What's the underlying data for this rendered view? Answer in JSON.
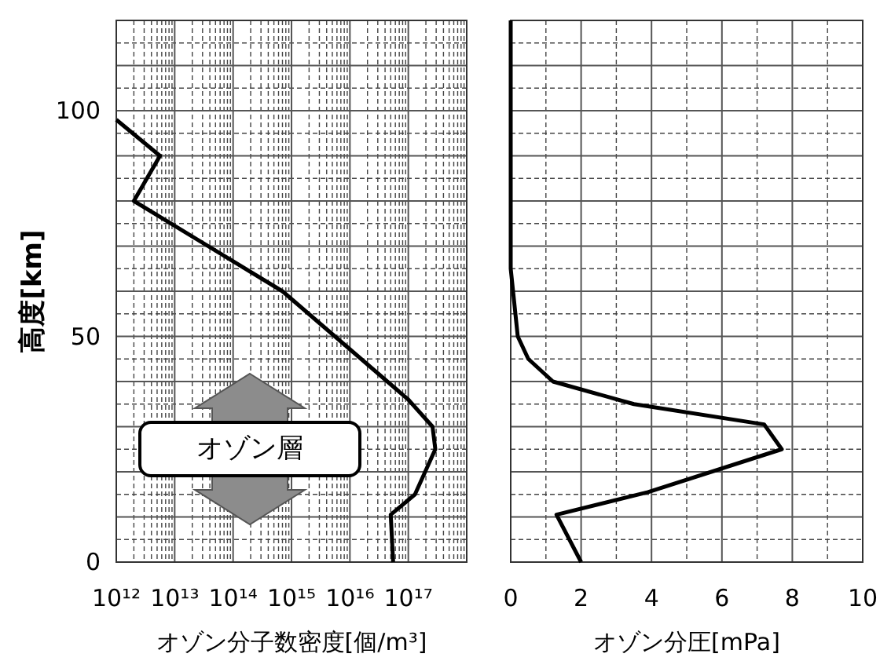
{
  "chart_data": [
    {
      "type": "line",
      "ylabel": "高度[km]",
      "xlabel": "オゾン分子数密度[個/m³]",
      "log": "x",
      "grid": true,
      "xlim": [
        1000000000000.0,
        1e+18
      ],
      "xticks": [
        {
          "value": 1000000000000.0,
          "label": "10¹²"
        },
        {
          "value": 10000000000000.0,
          "label": "10¹³"
        },
        {
          "value": 100000000000000.0,
          "label": "10¹⁴"
        },
        {
          "value": 1000000000000000.0,
          "label": "10¹⁵"
        },
        {
          "value": 1e+16,
          "label": "10¹⁶"
        },
        {
          "value": 1e+17,
          "label": "10¹⁷"
        },
        {
          "value": 1e+18,
          "label": null
        }
      ],
      "ylim": [
        0,
        120
      ],
      "yticks": [
        0,
        {
          "value": 10,
          "label": null
        },
        {
          "value": 20,
          "label": null
        },
        {
          "value": 30,
          "label": null
        },
        {
          "value": 40,
          "label": null
        },
        50,
        {
          "value": 60,
          "label": null
        },
        {
          "value": 70,
          "label": null
        },
        {
          "value": 80,
          "label": null
        },
        {
          "value": 90,
          "label": null
        },
        100,
        {
          "value": 110,
          "label": null
        },
        {
          "value": 120,
          "label": null
        }
      ],
      "line_style": "solid",
      "annotations": [
        "オゾン層"
      ],
      "series": [
        {
          "color": "#000000",
          "x": [
            1000000000000.0,
            5600000000000.0,
            2000000000000.0,
            700000000000000.0,
            1e+17,
            2.6e+17,
            2.9e+17,
            1.3e+17,
            5e+16,
            5.5e+16
          ],
          "values": [
            98,
            90,
            80,
            60,
            36,
            30,
            25,
            15,
            10.5,
            0
          ]
        }
      ]
    },
    {
      "type": "line",
      "xlabel": "オゾン分圧[mPa]",
      "tick_labels": "x",
      "grid": true,
      "xlim": [
        0,
        10
      ],
      "xticks": [
        0,
        2,
        4,
        6,
        8,
        10
      ],
      "ylim": [
        0,
        120
      ],
      "yticks": [
        0,
        {
          "value": 10,
          "label": null
        },
        {
          "value": 20,
          "label": null
        },
        {
          "value": 30,
          "label": null
        },
        {
          "value": 40,
          "label": null
        },
        {
          "value": 50,
          "label": null
        },
        {
          "value": 60,
          "label": null
        },
        {
          "value": 70,
          "label": null
        },
        {
          "value": 80,
          "label": null
        },
        {
          "value": 90,
          "label": null
        },
        {
          "value": 100,
          "label": null
        },
        {
          "value": 110,
          "label": null
        },
        {
          "value": 120,
          "label": null
        }
      ],
      "line_style": "solid",
      "series": [
        {
          "color": "#000000",
          "x": [
            0,
            0,
            0.2,
            0.5,
            1.2,
            3.5,
            7.2,
            7.7,
            3.9,
            1.3,
            2
          ],
          "values": [
            120,
            65,
            50,
            45,
            40,
            35,
            30.5,
            25,
            15.5,
            10.5,
            0
          ]
        }
      ]
    }
  ]
}
